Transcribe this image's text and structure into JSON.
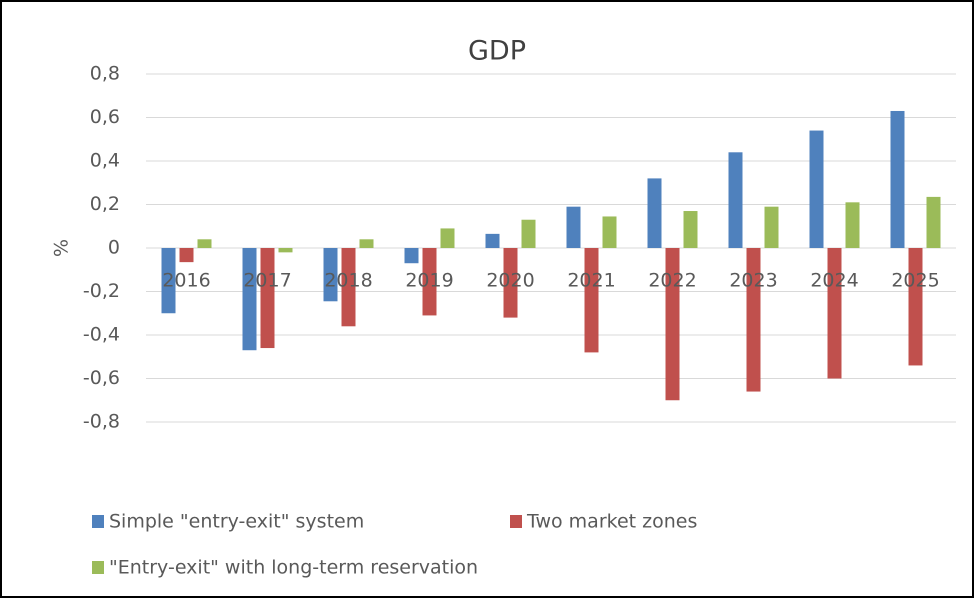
{
  "chart_data": {
    "type": "bar",
    "title": "GDP",
    "y_label": "%",
    "categories": [
      "2016",
      "2017",
      "2018",
      "2019",
      "2020",
      "2021",
      "2022",
      "2023",
      "2024",
      "2025"
    ],
    "series": [
      {
        "name": "Simple \"entry-exit\" system",
        "color": "#4f81bd",
        "values": [
          -0.3,
          -0.47,
          -0.245,
          -0.07,
          0.065,
          0.19,
          0.32,
          0.44,
          0.54,
          0.63
        ]
      },
      {
        "name": "Two market zones",
        "color": "#c0504d",
        "values": [
          -0.065,
          -0.46,
          -0.36,
          -0.31,
          -0.32,
          -0.48,
          -0.7,
          -0.66,
          -0.6,
          -0.54
        ]
      },
      {
        "name": "\"Entry-exit\" with long-term reservation",
        "color": "#9bbb59",
        "values": [
          0.04,
          -0.02,
          0.04,
          0.09,
          0.13,
          0.145,
          0.17,
          0.19,
          0.21,
          0.235
        ]
      }
    ],
    "ylim": [
      -1.0,
      0.8
    ],
    "yticks": [
      {
        "value": 0.8,
        "label": "0,8"
      },
      {
        "value": 0.6,
        "label": "0,6"
      },
      {
        "value": 0.4,
        "label": "0,4"
      },
      {
        "value": 0.2,
        "label": "0,2"
      },
      0,
      {
        "value": -0.2,
        "label": "-0,2"
      },
      {
        "value": -0.4,
        "label": "-0,4"
      },
      {
        "value": -0.6,
        "label": "-0,6"
      },
      {
        "value": -0.8,
        "label": "-0,8"
      }
    ],
    "grid": true
  }
}
